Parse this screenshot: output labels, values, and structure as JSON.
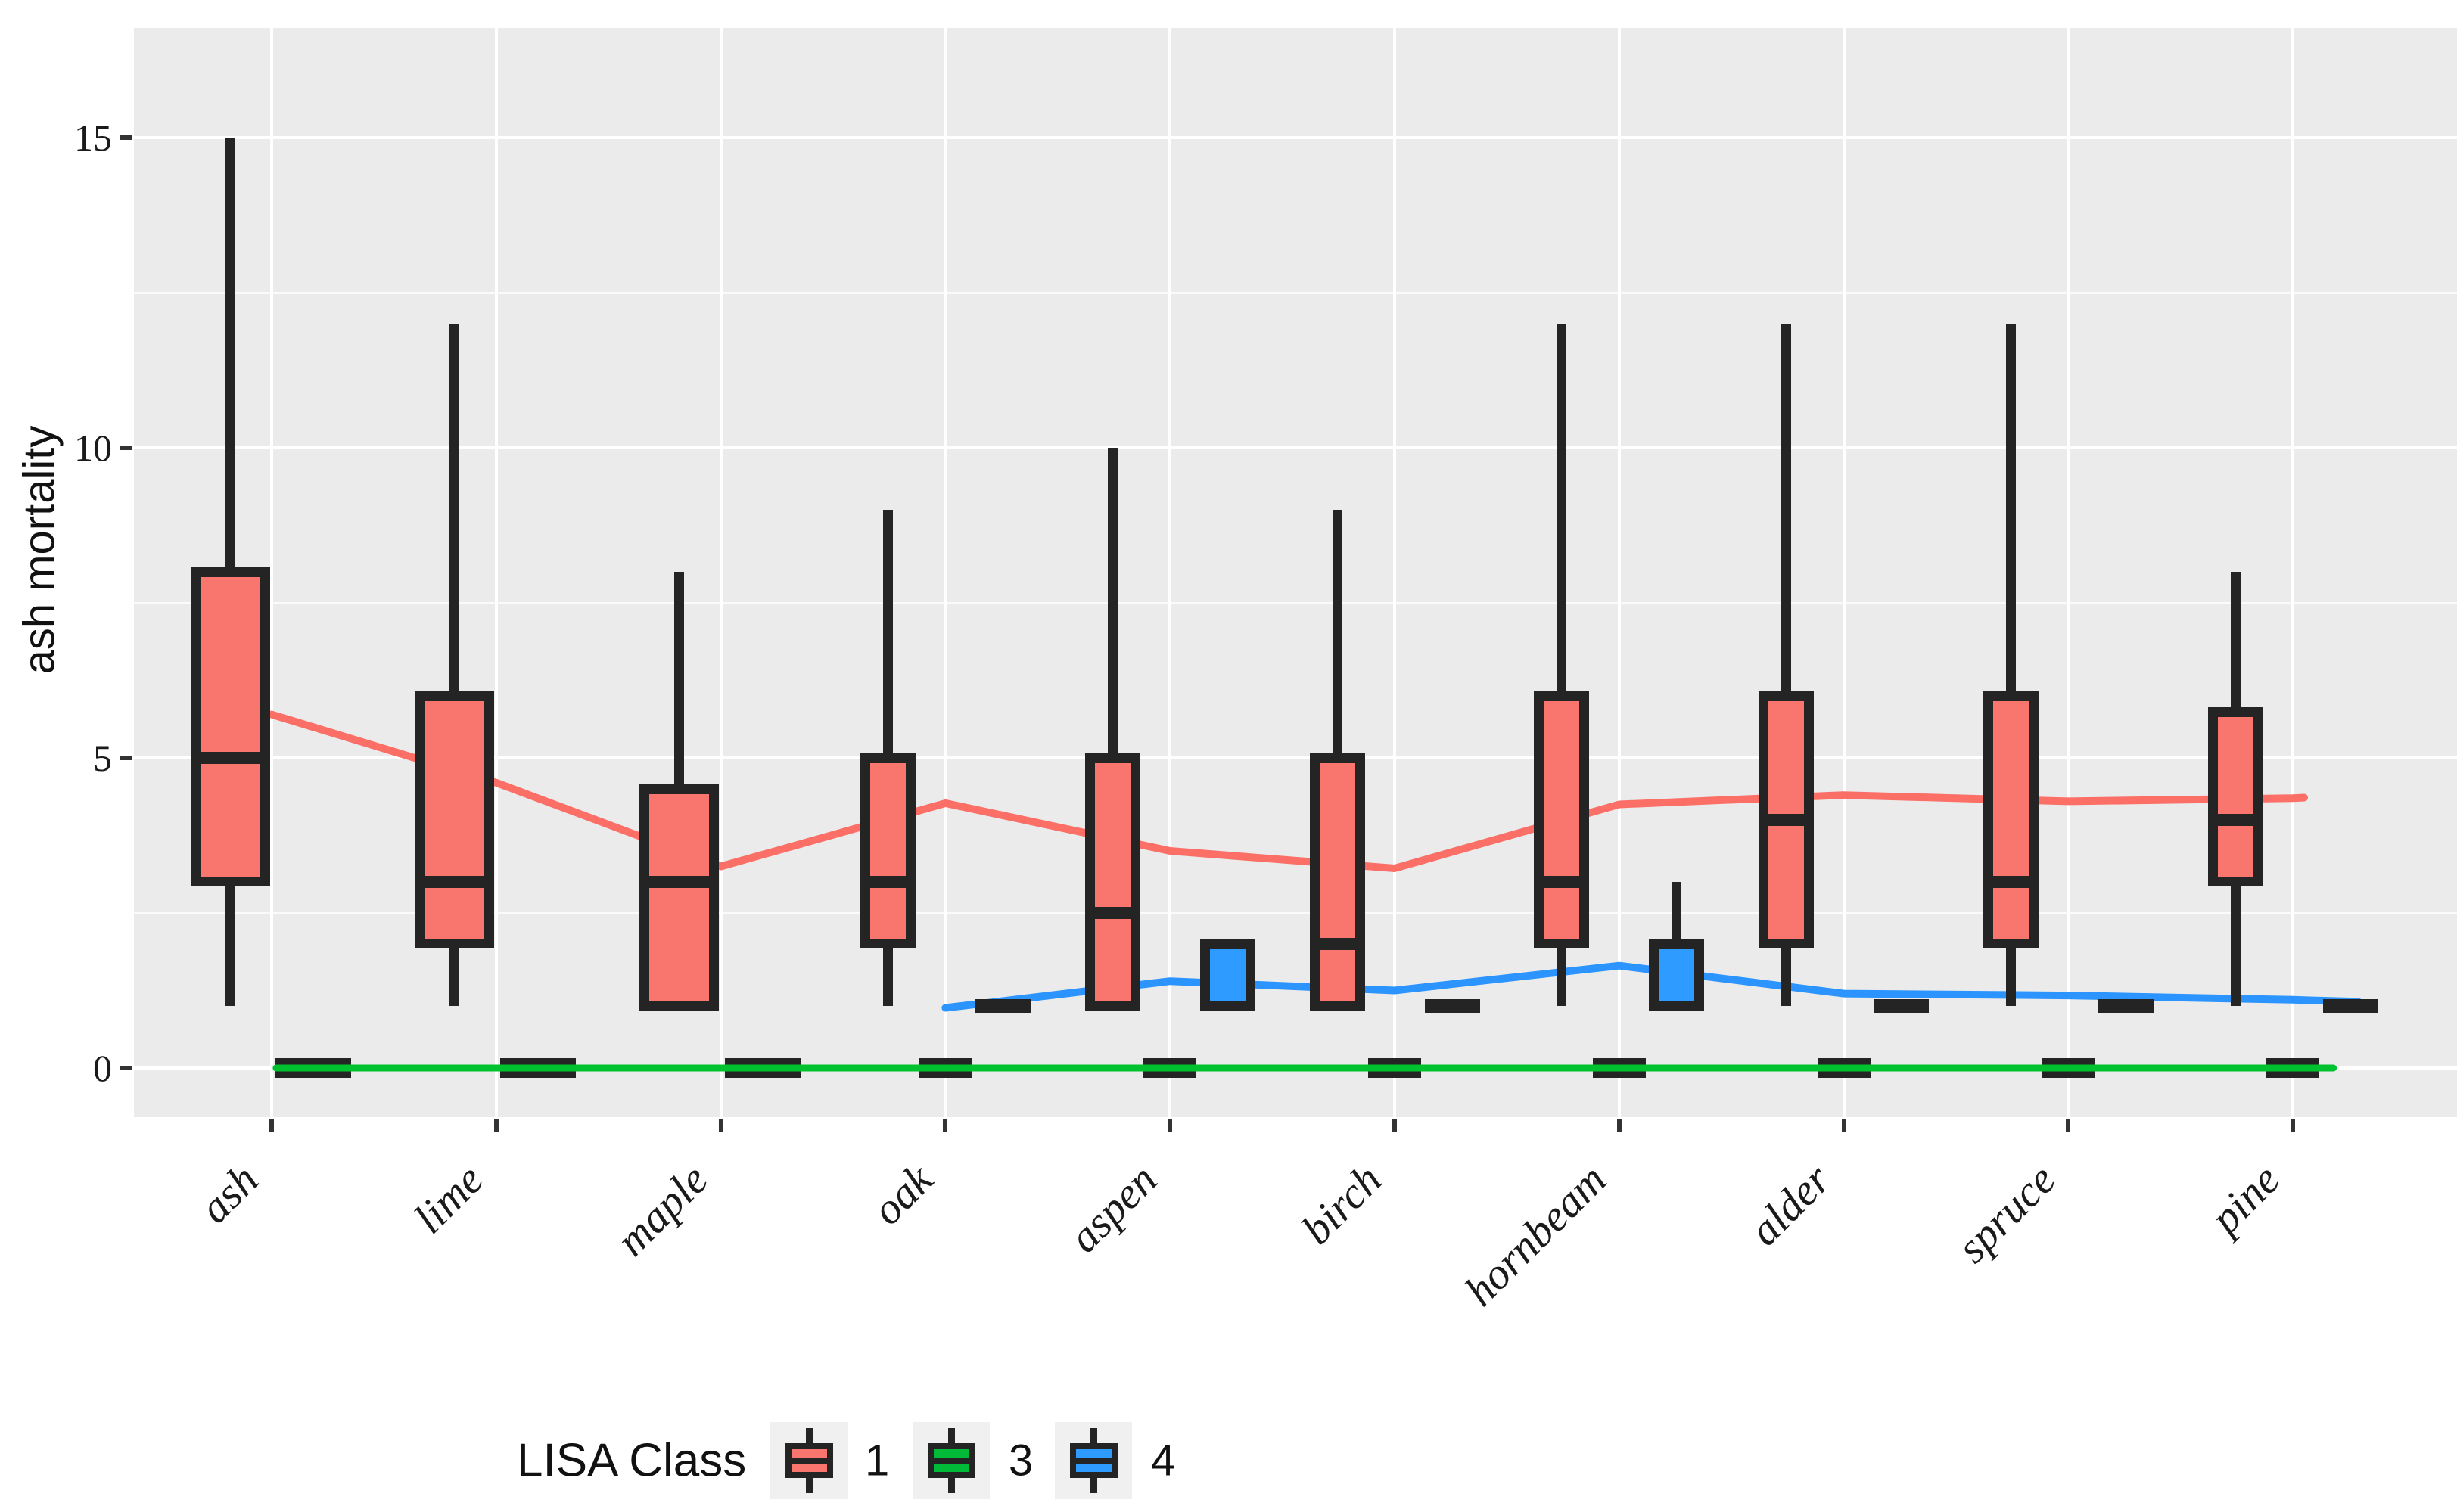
{
  "figure": {
    "bg": "#ffffff",
    "panel_bg": "#ebebeb",
    "grid_color": "#ffffff"
  },
  "y_axis": {
    "title": "ash mortality",
    "tick_labels": [
      "0",
      "5",
      "10",
      "15"
    ],
    "tick_values": [
      0,
      5,
      10,
      15
    ],
    "minor_values": [
      2.5,
      7.5,
      12.5
    ]
  },
  "x_axis": {
    "categories": [
      "ash",
      "lime",
      "maple",
      "oak",
      "aspen",
      "birch",
      "hornbeam",
      "alder",
      "spruce",
      "pine"
    ]
  },
  "legend": {
    "title": "LISA Class",
    "entries": [
      {
        "label": "1",
        "color": "#F8766D"
      },
      {
        "label": "3",
        "color": "#00BA38"
      },
      {
        "label": "4",
        "color": "#2D9BFF"
      }
    ]
  },
  "chart_data": {
    "type": "boxplot",
    "title": "",
    "xlabel": "",
    "ylabel": "ash mortality",
    "ylim": [
      -0.85,
      16.8
    ],
    "grid": "on",
    "legend_position": "bottom",
    "box_stat_order": [
      "min",
      "q1",
      "median",
      "q3",
      "max"
    ],
    "categories": [
      "ash",
      "lime",
      "maple",
      "oak",
      "aspen",
      "birch",
      "hornbeam",
      "alder",
      "spruce",
      "pine"
    ],
    "series": [
      {
        "name": "1",
        "fill": "#F8766D",
        "boxes": [
          [
            1,
            3,
            5,
            8,
            15
          ],
          [
            1,
            2,
            3,
            6,
            12
          ],
          [
            1,
            1,
            3,
            4.5,
            8
          ],
          [
            1,
            2,
            3,
            5,
            9
          ],
          [
            1,
            1,
            2.5,
            5,
            10
          ],
          [
            1,
            1,
            2,
            5,
            9
          ],
          [
            1,
            2,
            3,
            6,
            12
          ],
          [
            1,
            2,
            4,
            6,
            12
          ],
          [
            1,
            2,
            3,
            6,
            12
          ],
          [
            1,
            3,
            4,
            5.75,
            8
          ]
        ]
      },
      {
        "name": "3",
        "fill": "#00BA38",
        "boxes": [
          [
            0,
            0,
            0,
            0,
            0
          ],
          [
            0,
            0,
            0,
            0,
            0
          ],
          [
            0,
            0,
            0,
            0,
            0
          ],
          [
            0,
            0,
            0,
            0,
            0
          ],
          [
            0,
            0,
            0,
            0,
            0
          ],
          [
            0,
            0,
            0,
            0,
            0
          ],
          [
            0,
            0,
            0,
            0,
            0
          ],
          [
            0,
            0,
            0,
            0,
            0
          ],
          [
            0,
            0,
            0,
            0,
            0
          ],
          [
            0,
            0,
            0,
            0,
            0
          ]
        ]
      },
      {
        "name": "4",
        "fill": "#2D9BFF",
        "boxes": [
          null,
          null,
          null,
          [
            1,
            1,
            1,
            1,
            1
          ],
          [
            1,
            1,
            1,
            2,
            2
          ],
          [
            1,
            1,
            1,
            1,
            1
          ],
          [
            1,
            1,
            1,
            2,
            3
          ],
          [
            1,
            1,
            1,
            1,
            1
          ],
          [
            1,
            1,
            1,
            1,
            1
          ],
          [
            1,
            1,
            1,
            1,
            1
          ]
        ]
      }
    ],
    "trend_lines": [
      {
        "class": "1",
        "color": "#FB6F67",
        "points": [
          [
            0,
            5.7
          ],
          [
            1,
            4.6
          ],
          [
            2,
            3.25
          ],
          [
            3,
            4.27
          ],
          [
            4,
            3.5
          ],
          [
            5,
            3.22
          ],
          [
            6,
            4.25
          ],
          [
            7,
            4.4
          ],
          [
            8,
            4.3
          ],
          [
            9,
            4.35
          ],
          [
            9.05,
            4.36
          ]
        ]
      },
      {
        "class": "3",
        "color": "#00C22E",
        "points": [
          [
            0.02,
            0
          ],
          [
            9.18,
            0
          ]
        ]
      },
      {
        "class": "4",
        "color": "#2B94FF",
        "points": [
          [
            3,
            0.97
          ],
          [
            4,
            1.4
          ],
          [
            5,
            1.25
          ],
          [
            6,
            1.65
          ],
          [
            7,
            1.2
          ],
          [
            8,
            1.17
          ],
          [
            9,
            1.1
          ],
          [
            9.29,
            1.07
          ]
        ]
      }
    ]
  }
}
